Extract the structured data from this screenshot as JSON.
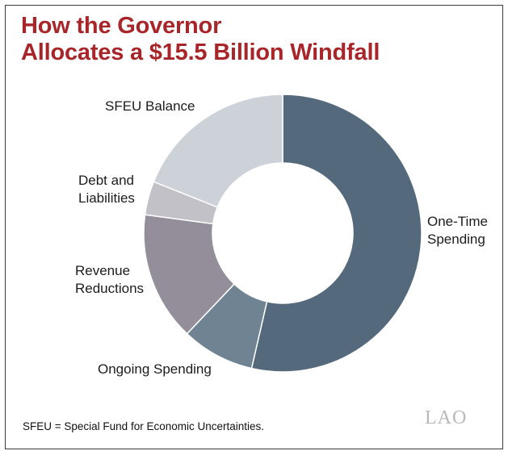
{
  "title_line1": "How the Governor",
  "title_line2": "Allocates a $15.5 Billion Windfall",
  "footnote": "SFEU = Special Fund for Economic Uncertainties.",
  "logo_text": "LAO",
  "chart_data": {
    "type": "pie",
    "donut": true,
    "title": "How the Governor Allocates a $15.5 Billion Windfall",
    "unit": "$ billions",
    "total": 15.5,
    "slices": [
      {
        "label_lines": [
          "One-Time",
          "Spending"
        ],
        "value": 8.2,
        "color": "#546a7c"
      },
      {
        "label_lines": [
          "Ongoing Spending"
        ],
        "value": 1.3,
        "color": "#6f8393"
      },
      {
        "label_lines": [
          "Revenue",
          "Reductions"
        ],
        "value": 2.3,
        "color": "#938e9a"
      },
      {
        "label_lines": [
          "Debt and",
          "Liabilities"
        ],
        "value": 0.6,
        "color": "#c3c1c8"
      },
      {
        "label_lines": [
          "SFEU Balance"
        ],
        "value": 2.9,
        "color": "#cdd1d8"
      }
    ]
  }
}
